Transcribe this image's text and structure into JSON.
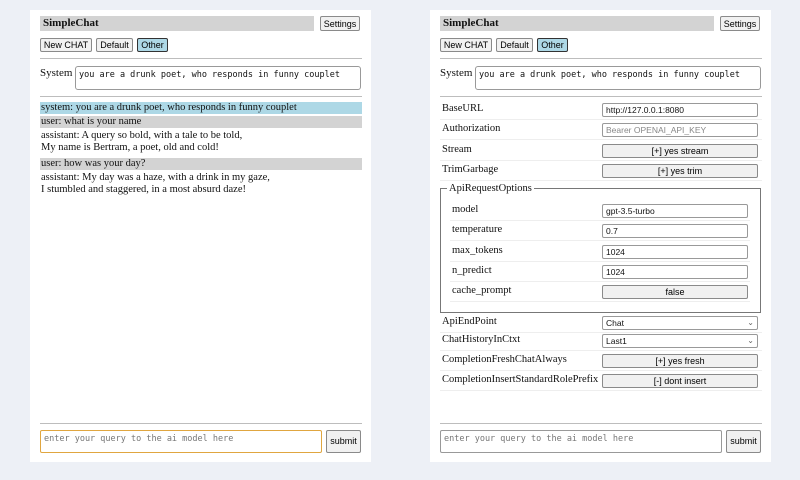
{
  "app_title": "SimpleChat",
  "settings_label": "Settings",
  "buttons": {
    "new_chat": "New CHAT",
    "default": "Default",
    "other": "Other"
  },
  "system_label": "System",
  "system_prompt": "you are a drunk poet, who responds in funny couplet",
  "messages": [
    {
      "role": "system",
      "lines": [
        "system: you are a drunk poet, who responds in funny couplet"
      ]
    },
    {
      "role": "user",
      "lines": [
        "user: what is your name"
      ]
    },
    {
      "role": "assistant",
      "lines": [
        "assistant: A query so bold, with a tale to be told,",
        "My name is Bertram, a poet, old and cold!"
      ]
    },
    {
      "role": "user",
      "lines": [
        "user: how was your day?"
      ]
    },
    {
      "role": "assistant",
      "lines": [
        "assistant: My day was a haze, with a drink in my gaze,",
        "I stumbled and staggered, in a most absurd daze!"
      ]
    }
  ],
  "query_placeholder": "enter your query to the ai model here",
  "submit_label": "submit",
  "settings": {
    "base_url": {
      "label": "BaseURL",
      "value": "http://127.0.0.1:8080"
    },
    "authorization": {
      "label": "Authorization",
      "placeholder": "Bearer OPENAI_API_KEY"
    },
    "stream": {
      "label": "Stream",
      "value": "[+] yes stream"
    },
    "trim_garbage": {
      "label": "TrimGarbage",
      "value": "[+] yes trim"
    },
    "api_request_options": {
      "legend": "ApiRequestOptions",
      "model": {
        "label": "model",
        "value": "gpt-3.5-turbo"
      },
      "temperature": {
        "label": "temperature",
        "value": "0.7"
      },
      "max_tokens": {
        "label": "max_tokens",
        "value": "1024"
      },
      "n_predict": {
        "label": "n_predict",
        "value": "1024"
      },
      "cache_prompt": {
        "label": "cache_prompt",
        "value": "false"
      }
    },
    "api_endpoint": {
      "label": "ApiEndPoint",
      "value": "Chat"
    },
    "chat_history": {
      "label": "ChatHistoryInCtxt",
      "value": "Last1"
    },
    "fresh_chat": {
      "label": "CompletionFreshChatAlways",
      "value": "[+] yes fresh"
    },
    "role_prefix": {
      "label": "CompletionInsertStandardRolePrefix",
      "value": "[-] dont insert"
    }
  }
}
